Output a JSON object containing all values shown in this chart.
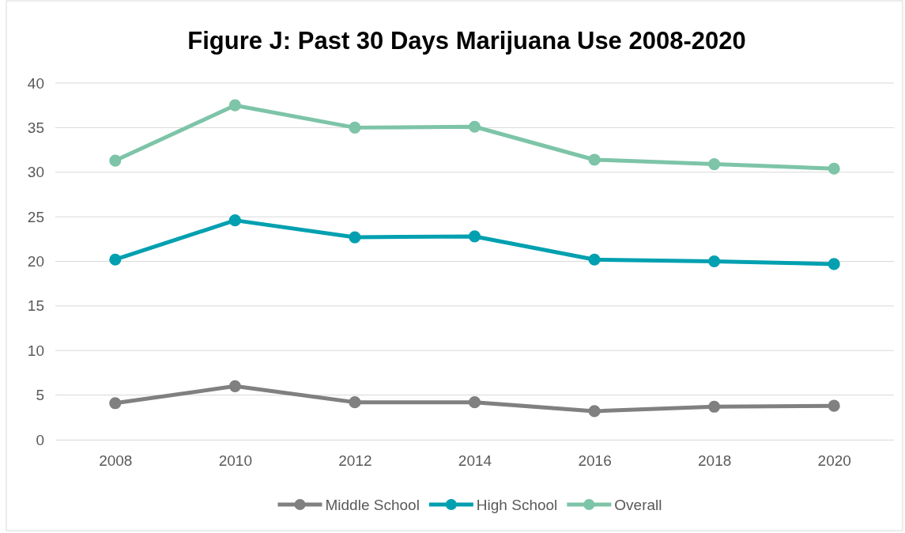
{
  "chart_data": {
    "type": "line",
    "title": "Figure J: Past 30 Days Marijuana Use 2008-2020",
    "categories": [
      "2008",
      "2010",
      "2012",
      "2014",
      "2016",
      "2018",
      "2020"
    ],
    "series": [
      {
        "name": "Middle School",
        "color": "#808080",
        "values": [
          4.1,
          6.0,
          4.2,
          4.2,
          3.2,
          3.7,
          3.8
        ]
      },
      {
        "name": "High School",
        "color": "#00a0b0",
        "values": [
          20.2,
          24.6,
          22.7,
          22.8,
          20.2,
          20.0,
          19.7
        ]
      },
      {
        "name": "Overall",
        "color": "#7dc4a8",
        "values": [
          31.3,
          37.5,
          35.0,
          35.1,
          31.4,
          30.9,
          30.4
        ]
      }
    ],
    "ylim": [
      0,
      40
    ],
    "yticks": [
      0,
      5,
      10,
      15,
      20,
      25,
      30,
      35,
      40
    ],
    "grid": "y",
    "legend": "bottom",
    "marker": "circle",
    "line_style": "solid"
  }
}
